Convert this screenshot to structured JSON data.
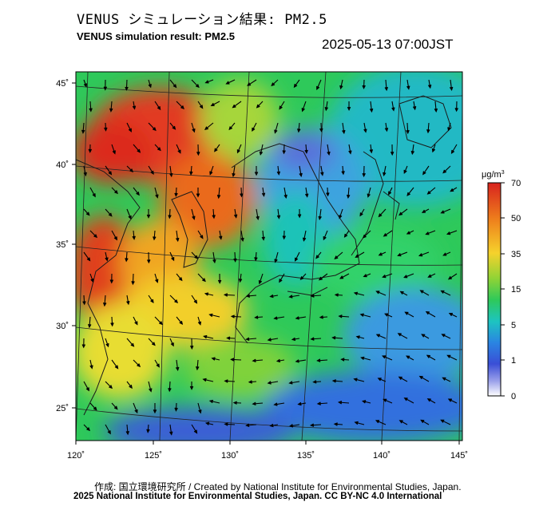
{
  "header": {
    "title_jp": "VENUS シミュレーション結果: PM2.5",
    "title_en": "VENUS simulation result: PM2.5",
    "timestamp": "2025-05-13 07:00JST"
  },
  "map": {
    "lon_labels": [
      "120˚",
      "125˚",
      "130˚",
      "135˚",
      "140˚",
      "145˚"
    ],
    "lat_labels": [
      "45˚",
      "40˚",
      "35˚",
      "30˚",
      "25˚"
    ],
    "lon_values": [
      120,
      125,
      130,
      135,
      140,
      145
    ],
    "lat_values": [
      45,
      40,
      35,
      30,
      25
    ]
  },
  "colorbar": {
    "unit": "μg/m",
    "unit_sup": "3",
    "ticks": [
      "70",
      "50",
      "35",
      "15",
      "5",
      "1",
      "0"
    ],
    "colors": [
      "#e0302a",
      "#ef8a1d",
      "#f2d52a",
      "#9ad232",
      "#2fc75a",
      "#1fc3b8",
      "#2a7fe0",
      "#3f4fd6",
      "#8a92e6",
      "#ffffff"
    ]
  },
  "footer": {
    "credit_line1": "作成: 国立環境研究所 / Created by National Institute for Environmental Studies, Japan.",
    "credit_line2": "2025 National Institute for Environmental Studies, Japan. CC BY-NC 4.0 International"
  }
}
